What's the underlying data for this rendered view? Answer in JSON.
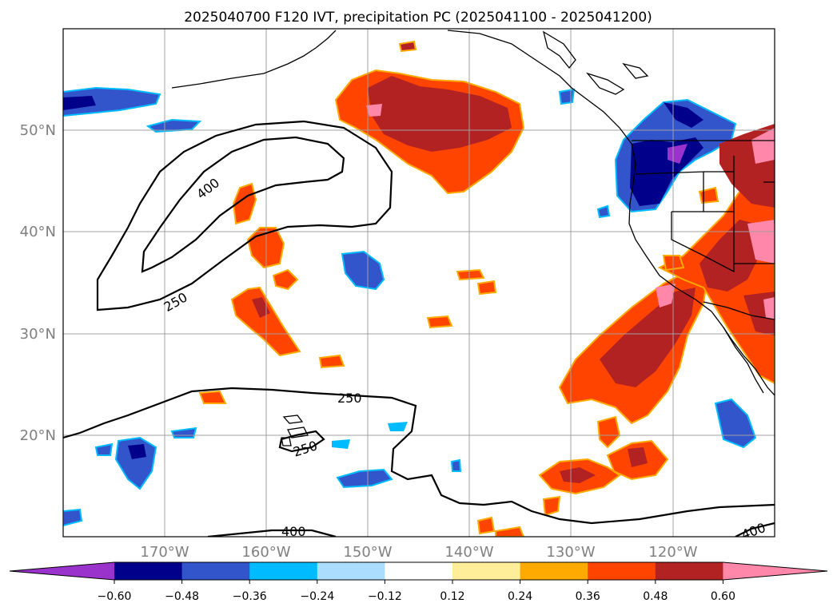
{
  "title": "2025040700 F120 IVT, precipitation PC (2025041100 - 2025041200)",
  "map": {
    "lat_labels": [
      {
        "text": "50°N",
        "lat": 50
      },
      {
        "text": "40°N",
        "lat": 40
      },
      {
        "text": "30°N",
        "lat": 30
      },
      {
        "text": "20°N",
        "lat": 20
      }
    ],
    "lon_labels": [
      {
        "text": "170°W",
        "lon": -170
      },
      {
        "text": "160°W",
        "lon": -160
      },
      {
        "text": "150°W",
        "lon": -150
      },
      {
        "text": "140°W",
        "lon": -140
      },
      {
        "text": "130°W",
        "lon": -130
      },
      {
        "text": "120°W",
        "lon": -120
      }
    ],
    "lon_range": [
      -180,
      -110
    ],
    "lat_range": [
      10,
      60
    ],
    "grid": true,
    "contour_labels": [
      "400",
      "250",
      "250",
      "250",
      "400",
      "400"
    ]
  },
  "colorbar": {
    "colors": [
      "#9933cc",
      "#00008b",
      "#3355cc",
      "#00bbff",
      "#aaddff",
      "#ffffff",
      "#ffee99",
      "#ffaa00",
      "#ff4400",
      "#b22222",
      "#ff88aa"
    ],
    "tick_labels": [
      "−0.60",
      "−0.48",
      "−0.36",
      "−0.24",
      "−0.12",
      "0.12",
      "0.24",
      "0.36",
      "0.48",
      "0.60"
    ],
    "extend": "both"
  }
}
